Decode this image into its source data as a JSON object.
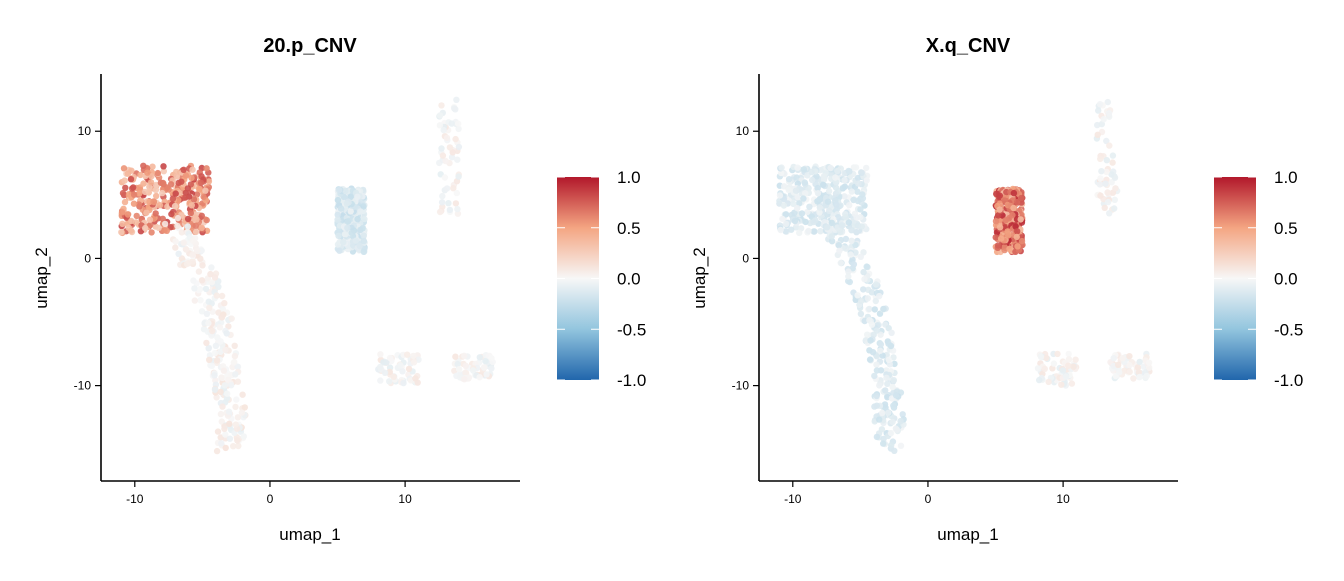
{
  "figure": {
    "panels": [
      {
        "title": "20.p_CNV"
      },
      {
        "title": "X.q_CNV"
      }
    ]
  },
  "chart_data": [
    {
      "type": "scatter",
      "title": "20.p_CNV",
      "xlabel": "umap_1",
      "ylabel": "umap_2",
      "xlim": [
        -12.5,
        18.5
      ],
      "ylim": [
        -17.5,
        14.5
      ],
      "x_ticks": [
        -10,
        0,
        10
      ],
      "y_ticks": [
        -10,
        0,
        10
      ],
      "colorbar": {
        "range": [
          -1.0,
          1.0
        ],
        "ticks": [
          1.0,
          0.5,
          0.0,
          -0.5,
          -1.0
        ],
        "low_color": "#2166ac",
        "mid_color": "#f7f7f7",
        "high_color": "#b2182b"
      },
      "grid": false,
      "legend": "right",
      "clusters": [
        {
          "name": "upper-left cluster",
          "x": [
            -11,
            -4.5
          ],
          "y": [
            2,
            7.3
          ],
          "value": 0.55
        },
        {
          "name": "stem",
          "x": [
            -9,
            -3
          ],
          "y": [
            -15,
            3
          ],
          "value": 0.02
        },
        {
          "name": "mid cluster",
          "x": [
            5,
            7
          ],
          "y": [
            0.5,
            5.5
          ],
          "value": -0.15
        },
        {
          "name": "top-right strip",
          "x": [
            12.5,
            14
          ],
          "y": [
            3.5,
            12.5
          ],
          "value": 0.0
        },
        {
          "name": "right blob",
          "x": [
            13.5,
            16.5
          ],
          "y": [
            -9.5,
            -7.5
          ],
          "value": 0.0
        },
        {
          "name": "small arc",
          "x": [
            8,
            11
          ],
          "y": [
            -10,
            -7.5
          ],
          "value": 0.0
        }
      ]
    },
    {
      "type": "scatter",
      "title": "X.q_CNV",
      "xlabel": "umap_1",
      "ylabel": "umap_2",
      "xlim": [
        -12.5,
        18.5
      ],
      "ylim": [
        -17.5,
        14.5
      ],
      "x_ticks": [
        -10,
        0,
        10
      ],
      "y_ticks": [
        -10,
        0,
        10
      ],
      "colorbar": {
        "range": [
          -1.0,
          1.0
        ],
        "ticks": [
          1.0,
          0.5,
          0.0,
          -0.5,
          -1.0
        ],
        "low_color": "#2166ac",
        "mid_color": "#f7f7f7",
        "high_color": "#b2182b"
      },
      "grid": false,
      "legend": "right",
      "clusters": [
        {
          "name": "upper-left cluster",
          "x": [
            -11,
            -4.5
          ],
          "y": [
            2,
            7.3
          ],
          "value": -0.12
        },
        {
          "name": "stem",
          "x": [
            -9,
            -3
          ],
          "y": [
            -15,
            3
          ],
          "value": -0.12
        },
        {
          "name": "mid cluster",
          "x": [
            5,
            7
          ],
          "y": [
            0.5,
            5.5
          ],
          "value": 0.65
        },
        {
          "name": "top-right strip",
          "x": [
            12.5,
            14
          ],
          "y": [
            3.5,
            12.5
          ],
          "value": 0.0
        },
        {
          "name": "right blob",
          "x": [
            13.5,
            16.5
          ],
          "y": [
            -9.5,
            -7.5
          ],
          "value": 0.0
        },
        {
          "name": "small arc",
          "x": [
            8,
            11
          ],
          "y": [
            -10,
            -7.5
          ],
          "value": 0.0
        }
      ]
    }
  ]
}
